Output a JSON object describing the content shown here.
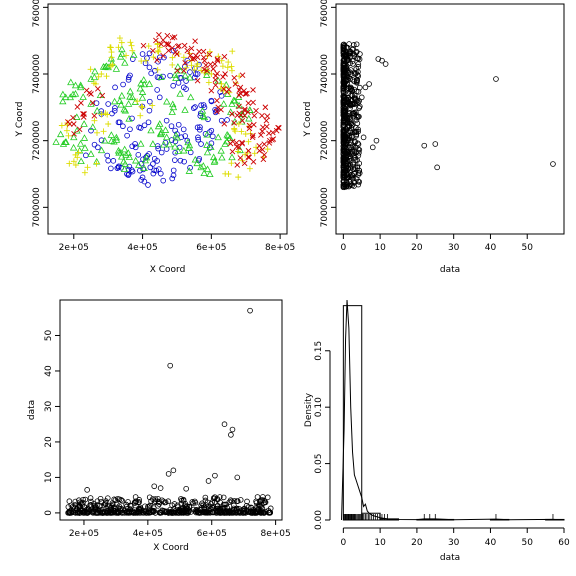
{
  "chart_data": [
    {
      "type": "scatter",
      "xlabel": "X Coord",
      "ylabel": "Y Coord",
      "xlim": [
        125000,
        820000
      ],
      "ylim": [
        6920000,
        7610000
      ],
      "xticks": [
        {
          "value": 200000,
          "label": "2e+05"
        },
        {
          "value": 400000,
          "label": "4e+05"
        },
        {
          "value": 600000,
          "label": "6e+05"
        },
        {
          "value": 800000,
          "label": "8e+05"
        }
      ],
      "yticks": [
        {
          "value": 7000000,
          "label": "7000000"
        },
        {
          "value": 7200000,
          "label": "7200000"
        },
        {
          "value": 7400000,
          "label": "7400000"
        },
        {
          "value": 7600000,
          "label": "7600000"
        }
      ],
      "grid": false,
      "groups": [
        {
          "marker": "circle",
          "color": "#0000cc",
          "count": 160,
          "points": [
            [
              300000,
              7310000
            ],
            [
              330000,
              7255000
            ],
            [
              355000,
              7215000
            ],
            [
              380000,
              7180000
            ],
            [
              410000,
              7150000
            ],
            [
              440000,
              7110000
            ],
            [
              460000,
              7080000
            ],
            [
              390000,
              7240000
            ],
            [
              420000,
              7290000
            ],
            [
              450000,
              7330000
            ],
            [
              470000,
              7260000
            ],
            [
              500000,
              7220000
            ],
            [
              530000,
              7200000
            ],
            [
              560000,
              7240000
            ],
            [
              580000,
              7300000
            ],
            [
              600000,
              7320000
            ],
            [
              520000,
              7360000
            ],
            [
              480000,
              7395000
            ],
            [
              420000,
              7420000
            ],
            [
              360000,
              7390000
            ],
            [
              320000,
              7360000
            ],
            [
              280000,
              7280000
            ],
            [
              250000,
              7230000
            ],
            [
              270000,
              7180000
            ],
            [
              300000,
              7140000
            ],
            [
              330000,
              7120000
            ],
            [
              360000,
              7100000
            ],
            [
              400000,
              7090000
            ],
            [
              430000,
              7130000
            ],
            [
              470000,
              7175000
            ],
            [
              510000,
              7140000
            ],
            [
              540000,
              7165000
            ],
            [
              570000,
              7190000
            ],
            [
              600000,
              7230000
            ],
            [
              630000,
              7260000
            ],
            [
              560000,
              7400000
            ],
            [
              530000,
              7440000
            ],
            [
              490000,
              7470000
            ],
            [
              450000,
              7450000
            ],
            [
              400000,
              7460000
            ]
          ]
        },
        {
          "marker": "triangle",
          "color": "#22cc22",
          "count": 170,
          "points": [
            [
              170000,
              7190000
            ],
            [
              200000,
              7210000
            ],
            [
              230000,
              7250000
            ],
            [
              250000,
              7310000
            ],
            [
              220000,
              7360000
            ],
            [
              190000,
              7330000
            ],
            [
              260000,
              7390000
            ],
            [
              300000,
              7420000
            ],
            [
              340000,
              7460000
            ],
            [
              370000,
              7330000
            ],
            [
              450000,
              7250000
            ],
            [
              490000,
              7300000
            ],
            [
              540000,
              7330000
            ],
            [
              580000,
              7270000
            ],
            [
              620000,
              7210000
            ],
            [
              660000,
              7150000
            ],
            [
              640000,
              7190000
            ],
            [
              610000,
              7140000
            ],
            [
              570000,
              7120000
            ],
            [
              520000,
              7170000
            ],
            [
              470000,
              7210000
            ],
            [
              430000,
              7190000
            ],
            [
              380000,
              7140000
            ],
            [
              330000,
              7170000
            ],
            [
              290000,
              7200000
            ],
            [
              250000,
              7160000
            ],
            [
              620000,
              7380000
            ],
            [
              660000,
              7310000
            ],
            [
              690000,
              7280000
            ],
            [
              510000,
              7410000
            ],
            [
              420000,
              7370000
            ],
            [
              350000,
              7290000
            ]
          ]
        },
        {
          "marker": "plus",
          "color": "#dddd00",
          "count": 110,
          "points": [
            [
              180000,
              7230000
            ],
            [
              210000,
              7150000
            ],
            [
              240000,
              7120000
            ],
            [
              260000,
              7260000
            ],
            [
              280000,
              7400000
            ],
            [
              310000,
              7450000
            ],
            [
              330000,
              7480000
            ],
            [
              370000,
              7470000
            ],
            [
              410000,
              7440000
            ],
            [
              450000,
              7480000
            ],
            [
              520000,
              7450000
            ],
            [
              560000,
              7430000
            ],
            [
              600000,
              7400000
            ],
            [
              630000,
              7440000
            ],
            [
              660000,
              7410000
            ],
            [
              640000,
              7360000
            ],
            [
              680000,
              7250000
            ],
            [
              700000,
              7220000
            ],
            [
              730000,
              7180000
            ],
            [
              690000,
              7140000
            ],
            [
              650000,
              7100000
            ],
            [
              300000,
              7250000
            ],
            [
              400000,
              7300000
            ]
          ]
        },
        {
          "marker": "cross",
          "color": "#cc0000",
          "count": 150,
          "points": [
            [
              430000,
              7470000
            ],
            [
              470000,
              7490000
            ],
            [
              500000,
              7460000
            ],
            [
              530000,
              7470000
            ],
            [
              560000,
              7450000
            ],
            [
              580000,
              7440000
            ],
            [
              610000,
              7430000
            ],
            [
              640000,
              7400000
            ],
            [
              670000,
              7370000
            ],
            [
              700000,
              7340000
            ],
            [
              730000,
              7290000
            ],
            [
              760000,
              7260000
            ],
            [
              790000,
              7230000
            ],
            [
              770000,
              7200000
            ],
            [
              740000,
              7170000
            ],
            [
              710000,
              7150000
            ],
            [
              680000,
              7180000
            ],
            [
              720000,
              7210000
            ],
            [
              750000,
              7240000
            ],
            [
              690000,
              7260000
            ],
            [
              660000,
              7280000
            ],
            [
              620000,
              7300000
            ],
            [
              600000,
              7350000
            ],
            [
              560000,
              7380000
            ],
            [
              520000,
              7410000
            ],
            [
              200000,
              7250000
            ],
            [
              230000,
              7280000
            ],
            [
              250000,
              7340000
            ]
          ]
        }
      ]
    },
    {
      "type": "scatter",
      "xlabel": "data",
      "ylabel": "Y Coord",
      "xlim": [
        -2,
        60
      ],
      "ylim": [
        6920000,
        7610000
      ],
      "xticks": [
        {
          "value": 0,
          "label": "0"
        },
        {
          "value": 10,
          "label": "10"
        },
        {
          "value": 20,
          "label": "20"
        },
        {
          "value": 30,
          "label": "30"
        },
        {
          "value": 40,
          "label": "40"
        },
        {
          "value": 50,
          "label": "50"
        }
      ],
      "yticks": [
        {
          "value": 7000000,
          "label": "7000000"
        },
        {
          "value": 7200000,
          "label": "7200000"
        },
        {
          "value": 7400000,
          "label": "7400000"
        },
        {
          "value": 7600000,
          "label": "7600000"
        }
      ],
      "grid": false,
      "points_count": 590,
      "outliers": [
        [
          57,
          7130000
        ],
        [
          41.5,
          7385000
        ],
        [
          25,
          7190000
        ],
        [
          25.5,
          7120000
        ],
        [
          22,
          7185000
        ],
        [
          11.5,
          7430000
        ],
        [
          10.5,
          7440000
        ],
        [
          9.5,
          7445000
        ],
        [
          9,
          7200000
        ],
        [
          8,
          7180000
        ],
        [
          7,
          7370000
        ],
        [
          6,
          7360000
        ],
        [
          5.5,
          7210000
        ],
        [
          5,
          7330000
        ],
        [
          4.5,
          7460000
        ]
      ]
    },
    {
      "type": "scatter",
      "xlabel": "X Coord",
      "ylabel": "data",
      "xlim": [
        125000,
        820000
      ],
      "ylim": [
        -2,
        60
      ],
      "xticks": [
        {
          "value": 200000,
          "label": "2e+05"
        },
        {
          "value": 400000,
          "label": "4e+05"
        },
        {
          "value": 600000,
          "label": "6e+05"
        },
        {
          "value": 800000,
          "label": "8e+05"
        }
      ],
      "yticks": [
        {
          "value": 0,
          "label": "0"
        },
        {
          "value": 10,
          "label": "10"
        },
        {
          "value": 20,
          "label": "20"
        },
        {
          "value": 30,
          "label": "30"
        },
        {
          "value": 40,
          "label": "40"
        },
        {
          "value": 50,
          "label": "50"
        }
      ],
      "grid": false,
      "points_count": 590,
      "outliers": [
        [
          720000,
          57
        ],
        [
          470000,
          41.5
        ],
        [
          640000,
          25
        ],
        [
          665000,
          23.5
        ],
        [
          660000,
          22
        ],
        [
          465000,
          11
        ],
        [
          480000,
          12
        ],
        [
          680000,
          10
        ],
        [
          610000,
          10.5
        ],
        [
          590000,
          9
        ],
        [
          420000,
          7.5
        ],
        [
          440000,
          7
        ],
        [
          210000,
          6.5
        ],
        [
          520000,
          6.8
        ],
        [
          760000,
          4.5
        ]
      ]
    },
    {
      "type": "histogram",
      "xlabel": "data",
      "ylabel": "Density",
      "xlim": [
        -2,
        60
      ],
      "ylim": [
        0,
        0.195
      ],
      "xticks": [
        {
          "value": 0,
          "label": "0"
        },
        {
          "value": 10,
          "label": "10"
        },
        {
          "value": 20,
          "label": "20"
        },
        {
          "value": 30,
          "label": "30"
        },
        {
          "value": 40,
          "label": "40"
        },
        {
          "value": 50,
          "label": "50"
        },
        {
          "value": 60,
          "label": "60"
        }
      ],
      "yticks": [
        {
          "value": 0,
          "label": "0.00"
        },
        {
          "value": 0.05,
          "label": "0.05"
        },
        {
          "value": 0.1,
          "label": "0.10"
        },
        {
          "value": 0.15,
          "label": "0.15"
        }
      ],
      "bins": [
        {
          "x0": 0,
          "x1": 5,
          "density": 0.19
        },
        {
          "x0": 5,
          "x1": 10,
          "density": 0.006
        },
        {
          "x0": 10,
          "x1": 15,
          "density": 0.001
        },
        {
          "x0": 15,
          "x1": 20,
          "density": 0.0
        },
        {
          "x0": 20,
          "x1": 25,
          "density": 0.0005
        },
        {
          "x0": 25,
          "x1": 30,
          "density": 0.0005
        },
        {
          "x0": 30,
          "x1": 35,
          "density": 0.0
        },
        {
          "x0": 35,
          "x1": 40,
          "density": 0.0
        },
        {
          "x0": 40,
          "x1": 45,
          "density": 0.0005
        },
        {
          "x0": 45,
          "x1": 50,
          "density": 0.0
        },
        {
          "x0": 50,
          "x1": 55,
          "density": 0.0
        },
        {
          "x0": 55,
          "x1": 60,
          "density": 0.0005
        }
      ],
      "density_curve": [
        [
          -0.5,
          0.0
        ],
        [
          0.2,
          0.08
        ],
        [
          0.6,
          0.16
        ],
        [
          1.0,
          0.21
        ],
        [
          1.5,
          0.17
        ],
        [
          2.0,
          0.1
        ],
        [
          2.5,
          0.06
        ],
        [
          3.0,
          0.04
        ],
        [
          3.5,
          0.035
        ],
        [
          4.0,
          0.03
        ],
        [
          4.5,
          0.025
        ],
        [
          5.0,
          0.02
        ],
        [
          5.5,
          0.012
        ],
        [
          6.0,
          0.014
        ],
        [
          6.5,
          0.008
        ],
        [
          7.0,
          0.006
        ],
        [
          8.0,
          0.004
        ],
        [
          9.0,
          0.003
        ],
        [
          10.0,
          0.002
        ],
        [
          12.0,
          0.001
        ],
        [
          15.0,
          0.0005
        ],
        [
          20.0,
          0.0003
        ],
        [
          22.0,
          0.001
        ],
        [
          25.0,
          0.001
        ],
        [
          30.0,
          0.0002
        ],
        [
          41.5,
          0.0008
        ],
        [
          45.0,
          0.0002
        ],
        [
          57.0,
          0.0006
        ],
        [
          60.0,
          0.0
        ]
      ],
      "rug_values": [
        0.1,
        0.3,
        0.5,
        0.7,
        0.9,
        1.1,
        1.3,
        1.5,
        1.7,
        1.9,
        2.1,
        2.3,
        2.5,
        2.7,
        2.9,
        3.1,
        3.3,
        3.5,
        3.8,
        4.1,
        4.4,
        4.7,
        5.0,
        5.3,
        5.6,
        6.0,
        6.4,
        6.8,
        7.2,
        7.7,
        8.2,
        8.7,
        9.3,
        9.9,
        10.5,
        11.2,
        12,
        22,
        23.5,
        25,
        41.5,
        57
      ]
    }
  ]
}
